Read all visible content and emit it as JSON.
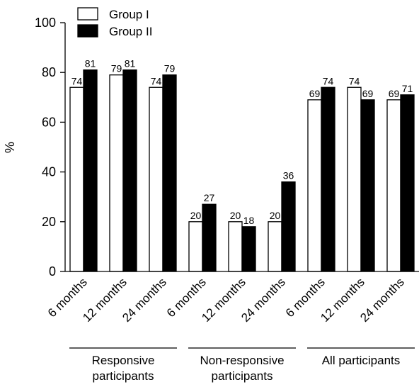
{
  "chart_data": {
    "type": "bar",
    "title": "",
    "ylabel": "%",
    "ylim": [
      0,
      100
    ],
    "yticks": [
      0,
      20,
      40,
      60,
      80,
      100
    ],
    "categories": [
      "6 months",
      "12 months",
      "24 months",
      "6 months",
      "12 months",
      "24 months",
      "6 months",
      "12 months",
      "24 months"
    ],
    "groups": [
      {
        "label_lines": [
          "Responsive",
          "participants"
        ],
        "categories": [
          0,
          1,
          2
        ]
      },
      {
        "label_lines": [
          "Non-responsive",
          "participants"
        ],
        "categories": [
          3,
          4,
          5
        ]
      },
      {
        "label_lines": [
          "All participants"
        ],
        "categories": [
          6,
          7,
          8
        ]
      }
    ],
    "series": [
      {
        "name": "Group I",
        "color": "#ffffff",
        "values": [
          74,
          79,
          74,
          20,
          20,
          20,
          69,
          74,
          69
        ]
      },
      {
        "name": "Group II",
        "color": "#000000",
        "values": [
          81,
          81,
          79,
          27,
          18,
          36,
          74,
          69,
          71
        ]
      }
    ],
    "legend_position": "top-left",
    "grid": false
  }
}
